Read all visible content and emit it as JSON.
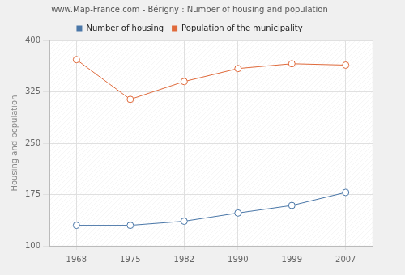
{
  "chart_data": {
    "type": "line",
    "title": "www.Map-France.com - Bérigny : Number of housing and population",
    "y_label": "Housing and population",
    "categories": [
      "1968",
      "1975",
      "1982",
      "1990",
      "1999",
      "2007"
    ],
    "series": [
      {
        "name": "Number of housing",
        "color": "#4a77a8",
        "marker": "circle",
        "values": [
          130,
          130,
          136,
          148,
          159,
          178
        ]
      },
      {
        "name": "Population of the municipality",
        "color": "#e06a3b",
        "marker": "circle",
        "values": [
          372,
          314,
          340,
          359,
          366,
          364
        ]
      }
    ],
    "ylim": [
      100,
      400
    ],
    "yticks": [
      100,
      175,
      250,
      325,
      400
    ],
    "grid": true,
    "legend": "top"
  }
}
